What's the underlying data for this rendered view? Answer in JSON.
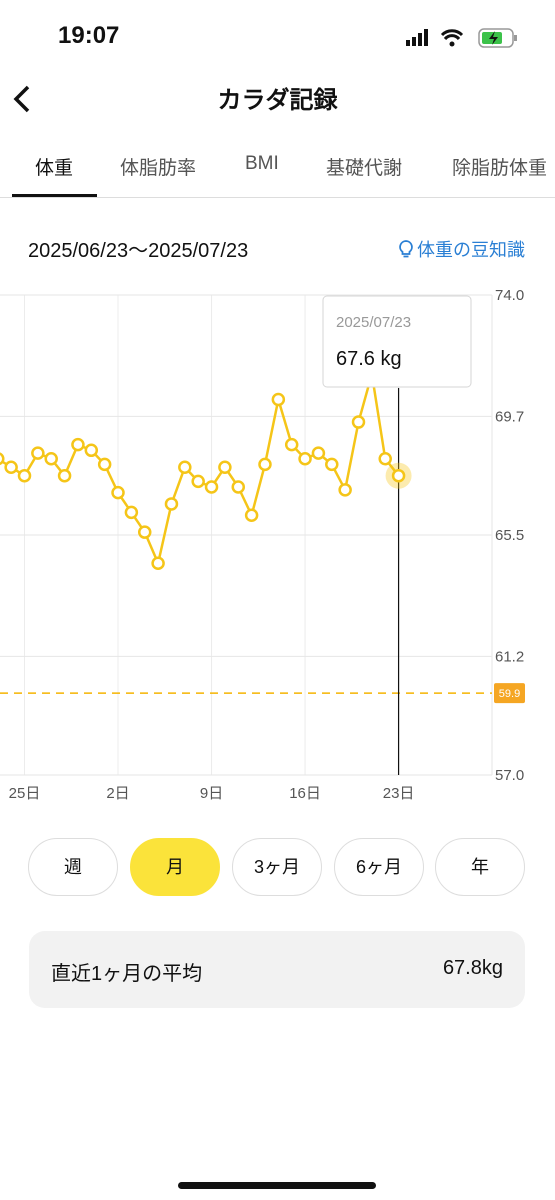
{
  "status_bar": {
    "time": "19:07"
  },
  "header": {
    "title": "カラダ記録"
  },
  "tabs": [
    "体重",
    "体脂肪率",
    "BMI",
    "基礎代謝",
    "除脂肪体重"
  ],
  "date_range": "2025/06/23〜2025/07/23",
  "tip_link": "体重の豆知識",
  "chart_data": {
    "type": "line",
    "categories": [
      null,
      null,
      "25日",
      null,
      null,
      null,
      null,
      null,
      null,
      "2日",
      null,
      null,
      null,
      null,
      null,
      null,
      "9日",
      null,
      null,
      null,
      null,
      null,
      null,
      "16日",
      null,
      null,
      null,
      null,
      null,
      null,
      "23日"
    ],
    "values": [
      68.2,
      67.9,
      67.6,
      68.4,
      68.2,
      67.6,
      68.7,
      68.5,
      68.0,
      67.0,
      66.3,
      65.6,
      64.5,
      66.6,
      67.9,
      67.4,
      67.2,
      67.9,
      67.2,
      66.2,
      68.0,
      70.3,
      68.7,
      68.2,
      68.4,
      68.0,
      67.1,
      69.5,
      71.2,
      68.2,
      67.6
    ],
    "color": "#f5c518",
    "ylim": [
      57,
      74
    ],
    "yticks": [
      {
        "value": 57,
        "label": "57.0"
      },
      61.2,
      65.5,
      69.7,
      {
        "value": 74,
        "label": "74.0"
      }
    ],
    "grid": true,
    "goal": 59.9,
    "tooltip": {
      "date": "2025/07/23",
      "text": "67.6 kg"
    }
  },
  "periods": [
    "週",
    "月",
    "3ヶ月",
    "6ヶ月",
    "年"
  ],
  "average": {
    "label": "直近1ヶ月の平均",
    "value": "67.8kg"
  }
}
